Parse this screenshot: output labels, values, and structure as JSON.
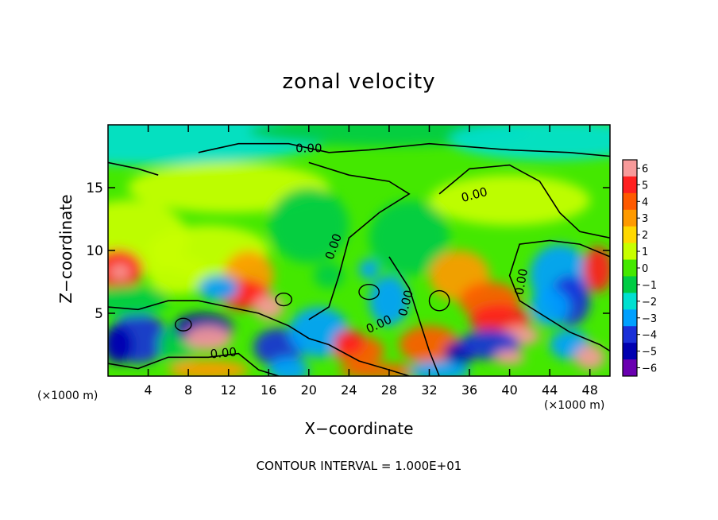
{
  "chart_data": {
    "type": "heatmap",
    "title": "zonal velocity",
    "xlabel": "X−coordinate",
    "ylabel": "Z−coordinate",
    "x_scale_left": "(×1000 m)",
    "x_scale_right": "(×1000 m)",
    "xlim": [
      0,
      50
    ],
    "ylim": [
      0,
      20
    ],
    "x_ticks": [
      4,
      8,
      12,
      16,
      20,
      24,
      28,
      32,
      36,
      40,
      44,
      48
    ],
    "y_ticks": [
      5,
      10,
      15
    ],
    "colorbar": {
      "levels": [
        6,
        5,
        4,
        3,
        2,
        1,
        0,
        -1,
        -2,
        -3,
        -4,
        -5,
        -6
      ],
      "labels": [
        "6",
        "5",
        "4",
        "3",
        "2",
        "1",
        "0",
        "−1",
        "−2",
        "−3",
        "−4",
        "−5",
        "−6"
      ],
      "colors": [
        "#f79a9a",
        "#ff2020",
        "#ff5a00",
        "#ff9a00",
        "#ffd800",
        "#c8ff00",
        "#44e800",
        "#00cc44",
        "#00e0d0",
        "#00a0ff",
        "#1a30d8",
        "#0000b0",
        "#6a00b0"
      ]
    },
    "contour_label": "0.00",
    "footer": "CONTOUR INTERVAL = 1.000E+01",
    "colors": {
      "background": "#ffffff",
      "green": "#44e800",
      "axis": "#000000"
    }
  }
}
